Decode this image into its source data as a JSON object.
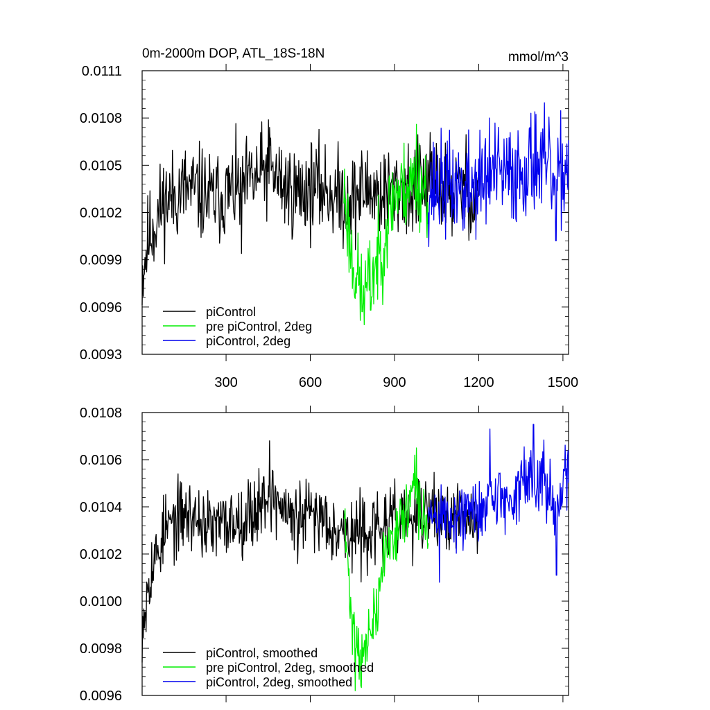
{
  "chart_data": [
    {
      "type": "line",
      "title": "0m-2000m DOP, ATL_18S-18N",
      "units": "mmol/m^3",
      "xlim": [
        1,
        1520
      ],
      "ylim": [
        0.0093,
        0.0111
      ],
      "xticks": [
        300,
        600,
        900,
        1200,
        1500
      ],
      "xtick_labels": [
        "300",
        "600",
        "900",
        "1200",
        "1500"
      ],
      "yticks": [
        0.0093,
        0.0096,
        0.0099,
        0.0102,
        0.0105,
        0.0108,
        0.0111
      ],
      "ytick_labels": [
        "0.0093",
        "0.0096",
        "0.0099",
        "0.0102",
        "0.0105",
        "0.0108",
        "0.0111"
      ],
      "legend_position": "bottom-left",
      "series": [
        {
          "name": "piControl",
          "color": "#000000",
          "x_start": 1,
          "x_end": 1200,
          "anchors": [
            [
              1,
              0.0098
            ],
            [
              10,
              0.0099
            ],
            [
              25,
              0.01005
            ],
            [
              50,
              0.01015
            ],
            [
              80,
              0.01028
            ],
            [
              110,
              0.0103
            ],
            [
              150,
              0.01035
            ],
            [
              200,
              0.01033
            ],
            [
              250,
              0.01028
            ],
            [
              300,
              0.01032
            ],
            [
              350,
              0.01035
            ],
            [
              400,
              0.0104
            ],
            [
              450,
              0.01048
            ],
            [
              500,
              0.01038
            ],
            [
              550,
              0.01032
            ],
            [
              600,
              0.01036
            ],
            [
              650,
              0.01035
            ],
            [
              700,
              0.0103
            ],
            [
              750,
              0.01028
            ],
            [
              800,
              0.01035
            ],
            [
              850,
              0.01032
            ],
            [
              900,
              0.01033
            ],
            [
              950,
              0.01036
            ],
            [
              1000,
              0.01037
            ],
            [
              1050,
              0.01038
            ],
            [
              1100,
              0.01033
            ],
            [
              1150,
              0.01035
            ],
            [
              1200,
              0.01032
            ]
          ],
          "noise": 0.00033,
          "seed": 11,
          "spikes": [
            [
              455,
              0.01074
            ],
            [
              380,
              0.0105
            ],
            [
              355,
              0.00994
            ],
            [
              965,
              0.01008
            ],
            [
              1180,
              0.01014
            ]
          ]
        },
        {
          "name": "pre piControl, 2deg",
          "color": "#00ee00",
          "x_start": 720,
          "x_end": 1020,
          "anchors": [
            [
              720,
              0.01035
            ],
            [
              735,
              0.0101
            ],
            [
              750,
              0.0099
            ],
            [
              765,
              0.0098
            ],
            [
              780,
              0.0097
            ],
            [
              800,
              0.0097
            ],
            [
              820,
              0.0098
            ],
            [
              840,
              0.0099
            ],
            [
              860,
              0.01
            ],
            [
              880,
              0.0102
            ],
            [
              900,
              0.01033
            ],
            [
              930,
              0.01035
            ],
            [
              950,
              0.01038
            ],
            [
              970,
              0.0104
            ],
            [
              985,
              0.0104
            ],
            [
              1000,
              0.01038
            ],
            [
              1020,
              0.01033
            ]
          ],
          "noise": 0.00032,
          "seed": 23,
          "spikes": [
            [
              978,
              0.01076
            ],
            [
              785,
              0.00957
            ],
            [
              815,
              0.00958
            ]
          ]
        },
        {
          "name": "piControl, 2deg",
          "color": "#0000ee",
          "x_start": 1020,
          "x_end": 1520,
          "anchors": [
            [
              1020,
              0.01035
            ],
            [
              1060,
              0.01037
            ],
            [
              1100,
              0.01036
            ],
            [
              1150,
              0.01037
            ],
            [
              1200,
              0.01038
            ],
            [
              1250,
              0.01045
            ],
            [
              1300,
              0.01042
            ],
            [
              1350,
              0.01047
            ],
            [
              1400,
              0.01052
            ],
            [
              1450,
              0.01046
            ],
            [
              1480,
              0.01035
            ],
            [
              1500,
              0.01048
            ],
            [
              1520,
              0.0105
            ]
          ],
          "noise": 0.00036,
          "seed": 37,
          "spikes": [
            [
              1238,
              0.0108
            ],
            [
              1400,
              0.01084
            ],
            [
              1475,
              0.01002
            ],
            [
              1150,
              0.0101
            ]
          ]
        }
      ]
    },
    {
      "type": "line",
      "title": "",
      "units": "",
      "xlim": [
        1,
        1520
      ],
      "ylim": [
        0.0096,
        0.0108
      ],
      "xticks": [
        300,
        600,
        900,
        1200,
        1500
      ],
      "xtick_labels": [
        "",
        "",
        "",
        "",
        ""
      ],
      "yticks": [
        0.0096,
        0.0098,
        0.01,
        0.0102,
        0.0104,
        0.0106,
        0.0108
      ],
      "ytick_labels": [
        "0.0096",
        "0.0098",
        "0.0100",
        "0.0102",
        "0.0104",
        "0.0106",
        "0.0108"
      ],
      "legend_position": "bottom-left",
      "series": [
        {
          "name": "piControl, smoothed",
          "color": "#000000",
          "x_start": 1,
          "x_end": 1200,
          "anchors": [
            [
              1,
              0.0099
            ],
            [
              10,
              0.01
            ],
            [
              25,
              0.01012
            ],
            [
              50,
              0.01018
            ],
            [
              80,
              0.0103
            ],
            [
              110,
              0.01033
            ],
            [
              150,
              0.01037
            ],
            [
              200,
              0.01035
            ],
            [
              250,
              0.0103
            ],
            [
              300,
              0.01033
            ],
            [
              350,
              0.01035
            ],
            [
              400,
              0.01038
            ],
            [
              450,
              0.01046
            ],
            [
              500,
              0.0104
            ],
            [
              550,
              0.01033
            ],
            [
              600,
              0.01037
            ],
            [
              650,
              0.01036
            ],
            [
              700,
              0.01031
            ],
            [
              750,
              0.01027
            ],
            [
              800,
              0.0103
            ],
            [
              850,
              0.0103
            ],
            [
              900,
              0.01033
            ],
            [
              950,
              0.01036
            ],
            [
              1000,
              0.01037
            ],
            [
              1050,
              0.01038
            ],
            [
              1100,
              0.01034
            ],
            [
              1150,
              0.01035
            ],
            [
              1200,
              0.01033
            ]
          ],
          "noise": 0.00017,
          "seed": 53,
          "spikes": [
            [
              455,
              0.01068
            ],
            [
              15,
              0.00987
            ],
            [
              965,
              0.01015
            ],
            [
              1180,
              0.01027
            ]
          ]
        },
        {
          "name": "pre piControl, 2deg, smoothed",
          "color": "#00ee00",
          "x_start": 720,
          "x_end": 1020,
          "anchors": [
            [
              720,
              0.01036
            ],
            [
              735,
              0.01012
            ],
            [
              750,
              0.0099
            ],
            [
              765,
              0.00985
            ],
            [
              780,
              0.00975
            ],
            [
              800,
              0.0098
            ],
            [
              820,
              0.0099
            ],
            [
              840,
              0.00995
            ],
            [
              860,
              0.0102
            ],
            [
              880,
              0.01024
            ],
            [
              900,
              0.0103
            ],
            [
              930,
              0.01035
            ],
            [
              950,
              0.0104
            ],
            [
              970,
              0.0105
            ],
            [
              985,
              0.0104
            ],
            [
              1000,
              0.01035
            ],
            [
              1020,
              0.01033
            ]
          ],
          "noise": 0.00014,
          "seed": 71,
          "spikes": [
            [
              978,
              0.01065
            ],
            [
              760,
              0.00962
            ]
          ]
        },
        {
          "name": "piControl, 2deg, smoothed",
          "color": "#0000ee",
          "x_start": 1020,
          "x_end": 1520,
          "anchors": [
            [
              1020,
              0.01035
            ],
            [
              1060,
              0.01037
            ],
            [
              1100,
              0.01035
            ],
            [
              1150,
              0.01037
            ],
            [
              1200,
              0.01038
            ],
            [
              1250,
              0.01046
            ],
            [
              1300,
              0.01042
            ],
            [
              1350,
              0.01048
            ],
            [
              1400,
              0.01055
            ],
            [
              1450,
              0.01047
            ],
            [
              1480,
              0.01033
            ],
            [
              1500,
              0.0105
            ],
            [
              1520,
              0.01055
            ]
          ],
          "noise": 0.00016,
          "seed": 89,
          "spikes": [
            [
              1240,
              0.01073
            ],
            [
              1395,
              0.01075
            ],
            [
              1477,
              0.01011
            ],
            [
              1060,
              0.01008
            ]
          ]
        }
      ]
    }
  ]
}
